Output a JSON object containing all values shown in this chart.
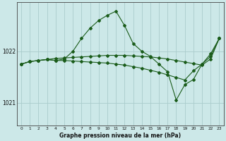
{
  "title": "Graphe pression niveau de la mer (hPa)",
  "background_color": "#cce8e8",
  "grid_color": "#aacccc",
  "line_color": "#1a5c1a",
  "xlim": [
    -0.5,
    23.5
  ],
  "ylim": [
    1020.55,
    1022.95
  ],
  "yticks": [
    1021,
    1022
  ],
  "xticks": [
    0,
    1,
    2,
    3,
    4,
    5,
    6,
    7,
    8,
    9,
    10,
    11,
    12,
    13,
    14,
    15,
    16,
    17,
    18,
    19,
    20,
    21,
    22,
    23
  ],
  "line1_x": [
    0,
    1,
    2,
    3,
    4,
    5,
    6,
    7,
    8,
    9,
    10,
    11,
    12,
    13,
    14,
    15,
    16,
    17,
    18,
    19,
    20,
    21,
    22,
    23
  ],
  "line1_y": [
    1021.75,
    1021.8,
    1021.82,
    1021.84,
    1021.86,
    1021.87,
    1021.88,
    1021.89,
    1021.9,
    1021.91,
    1021.92,
    1021.92,
    1021.92,
    1021.91,
    1021.9,
    1021.89,
    1021.87,
    1021.85,
    1021.82,
    1021.79,
    1021.76,
    1021.73,
    1021.85,
    1022.25
  ],
  "line2_x": [
    0,
    1,
    2,
    3,
    4,
    5,
    6,
    7,
    8,
    9,
    10,
    11,
    12,
    13,
    14,
    15,
    16,
    17,
    18,
    19,
    20,
    21,
    22,
    23
  ],
  "line2_y": [
    1021.75,
    1021.8,
    1021.82,
    1021.84,
    1021.82,
    1021.85,
    1022.0,
    1022.25,
    1022.45,
    1022.6,
    1022.7,
    1022.78,
    1022.5,
    1022.15,
    1022.0,
    1021.9,
    1021.75,
    1021.6,
    1021.05,
    1021.35,
    1021.45,
    1021.75,
    1021.95,
    1022.25
  ],
  "line3_x": [
    0,
    1,
    2,
    3,
    4,
    5,
    6,
    7,
    8,
    9,
    10,
    11,
    12,
    13,
    14,
    15,
    16,
    17,
    18,
    19,
    20,
    21,
    22,
    23
  ],
  "line3_y": [
    1021.75,
    1021.8,
    1021.82,
    1021.84,
    1021.82,
    1021.82,
    1021.81,
    1021.8,
    1021.79,
    1021.78,
    1021.77,
    1021.75,
    1021.73,
    1021.7,
    1021.67,
    1021.63,
    1021.59,
    1021.54,
    1021.49,
    1021.44,
    1021.62,
    1021.75,
    1021.9,
    1022.25
  ]
}
